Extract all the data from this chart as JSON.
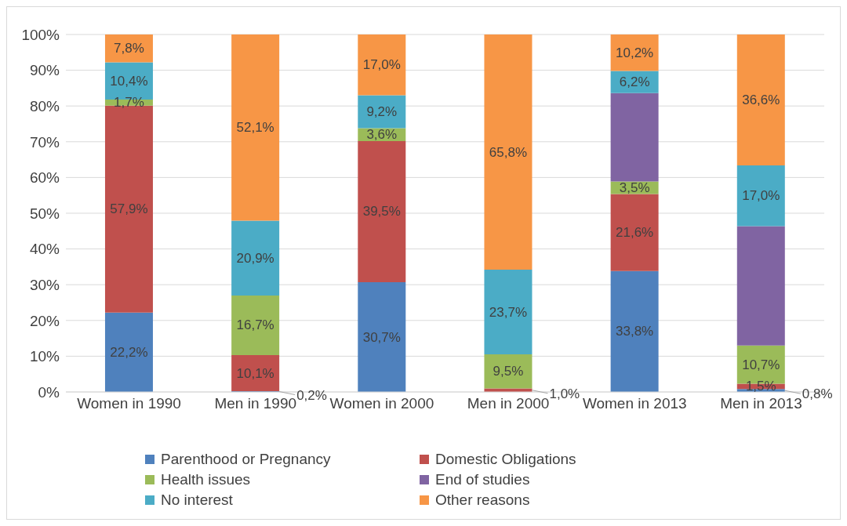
{
  "chart_data": {
    "type": "bar",
    "stacked": true,
    "categories": [
      "Women in 1990",
      "Men in 1990",
      "Women in 2000",
      "Men in 2000",
      "Women in 2013",
      "Men in 2013"
    ],
    "series": [
      {
        "name": "Parenthood or Pregnancy",
        "color": "#4f81bd",
        "values": [
          22.2,
          0.2,
          30.7,
          0,
          33.8,
          0.8
        ],
        "value_labels": [
          "22,2%",
          "0,2%",
          "30,7%",
          null,
          "33,8%",
          "0,8%"
        ]
      },
      {
        "name": "Domestic Obligations",
        "color": "#c0504d",
        "values": [
          57.9,
          10.1,
          39.5,
          1.0,
          21.6,
          1.5
        ],
        "value_labels": [
          "57,9%",
          "10,1%",
          "39,5%",
          "1,0%",
          "21,6%",
          "1,5%"
        ]
      },
      {
        "name": "Health issues",
        "color": "#9bbb59",
        "values": [
          1.7,
          16.7,
          3.6,
          9.5,
          3.5,
          10.7
        ],
        "value_labels": [
          "1,7%",
          "16,7%",
          "3,6%",
          "9,5%",
          "3,5%",
          "10,7%"
        ]
      },
      {
        "name": "End of studies",
        "color": "#8064a2",
        "values": [
          0,
          0,
          0,
          0,
          24.7,
          33.4
        ],
        "value_labels": [
          null,
          null,
          null,
          null,
          null,
          null
        ]
      },
      {
        "name": "No interest",
        "color": "#4bacc6",
        "values": [
          10.4,
          20.9,
          9.2,
          23.7,
          6.2,
          17.0
        ],
        "value_labels": [
          "10,4%",
          "20,9%",
          "9,2%",
          "23,7%",
          "6,2%",
          "17,0%"
        ]
      },
      {
        "name": "Other reasons",
        "color": "#f79646",
        "values": [
          7.8,
          52.1,
          17.0,
          65.8,
          10.2,
          36.6
        ],
        "value_labels": [
          "7,8%",
          "52,1%",
          "17,0%",
          "65,8%",
          "10,2%",
          "36,6%"
        ]
      }
    ],
    "ylim": [
      0,
      100
    ],
    "yticks": [
      {
        "value": 0,
        "label": "0%"
      },
      {
        "value": 10,
        "label": "10%"
      },
      {
        "value": 20,
        "label": "20%"
      },
      {
        "value": 30,
        "label": "30%"
      },
      {
        "value": 40,
        "label": "40%"
      },
      {
        "value": 50,
        "label": "50%"
      },
      {
        "value": 60,
        "label": "60%"
      },
      {
        "value": 70,
        "label": "70%"
      },
      {
        "value": 80,
        "label": "80%"
      },
      {
        "value": 90,
        "label": "90%"
      },
      {
        "value": 100,
        "label": "100%"
      }
    ],
    "grid": "y",
    "legend": "bottom"
  }
}
